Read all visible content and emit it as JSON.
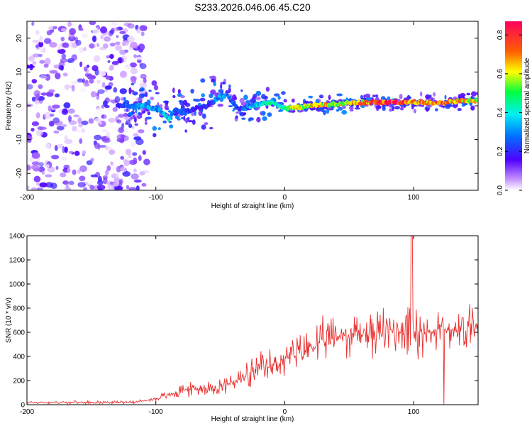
{
  "title": "S233.2026.046.06.45.C20",
  "chart_data": [
    {
      "type": "heatmap",
      "title": "",
      "xlabel": "Height of straight line (km)",
      "ylabel": "Frequency (Hz)",
      "xlim": [
        -200,
        150
      ],
      "ylim": [
        -25,
        25
      ],
      "xticks": [
        -200,
        -100,
        0,
        100
      ],
      "yticks": [
        -20,
        -10,
        0,
        10,
        20
      ],
      "colorbar": {
        "label": "Normalized spectral amplitude",
        "range": [
          0.0,
          0.87
        ],
        "ticks": [
          0.0,
          0.2,
          0.4,
          0.6,
          0.8
        ],
        "tick_labels": [
          "0.0",
          "0.2",
          "0.4",
          "0.6",
          "0.8"
        ]
      },
      "ridge": {
        "description": "dominant frequency band near 0 Hz",
        "x": [
          -130,
          -120,
          -110,
          -100,
          -95,
          -90,
          -85,
          -80,
          -70,
          -60,
          -50,
          -45,
          -40,
          -35,
          -30,
          -20,
          -10,
          0,
          10,
          20,
          40,
          60,
          80,
          100,
          120,
          140,
          150
        ],
        "y": [
          0,
          0,
          0,
          -1,
          -2,
          -4,
          -1,
          -2,
          -1,
          0,
          3,
          3,
          1,
          -1,
          -0.5,
          0.5,
          1,
          -1,
          -0.5,
          0,
          0.5,
          1,
          1,
          1,
          1,
          1.5,
          1.5
        ],
        "amplitude": [
          0.2,
          0.3,
          0.35,
          0.3,
          0.35,
          0.4,
          0.25,
          0.25,
          0.2,
          0.2,
          0.35,
          0.3,
          0.25,
          0.25,
          0.3,
          0.4,
          0.5,
          0.45,
          0.6,
          0.65,
          0.6,
          0.7,
          0.85,
          0.75,
          0.8,
          0.65,
          0.6
        ]
      },
      "noise_region": {
        "x_range": [
          -200,
          -115
        ],
        "amplitude": [
          0.0,
          0.2
        ]
      }
    },
    {
      "type": "line",
      "title": "",
      "xlabel": "Height of straight line (km)",
      "ylabel": "SNR (10 * v/v)",
      "xlim": [
        -200,
        150
      ],
      "ylim": [
        0,
        1400
      ],
      "xticks": [
        -200,
        -100,
        0,
        100
      ],
      "yticks": [
        0,
        200,
        400,
        600,
        800,
        1000,
        1200,
        1400
      ],
      "color": "#e8302f",
      "series": [
        {
          "name": "SNR",
          "x": [
            -200,
            -180,
            -160,
            -140,
            -120,
            -110,
            -100,
            -90,
            -80,
            -70,
            -60,
            -50,
            -40,
            -30,
            -20,
            -10,
            0,
            10,
            20,
            30,
            40,
            50,
            60,
            70,
            80,
            90,
            95,
            98,
            100,
            110,
            120,
            130,
            140,
            145,
            150
          ],
          "mean": [
            20,
            18,
            20,
            20,
            22,
            30,
            50,
            80,
            120,
            130,
            140,
            150,
            190,
            230,
            280,
            320,
            380,
            420,
            480,
            520,
            560,
            580,
            600,
            590,
            610,
            620,
            640,
            650,
            630,
            620,
            620,
            630,
            640,
            660,
            700
          ],
          "spread": [
            15,
            15,
            15,
            15,
            15,
            20,
            30,
            50,
            80,
            70,
            80,
            90,
            130,
            150,
            180,
            180,
            200,
            200,
            220,
            230,
            250,
            240,
            260,
            250,
            260,
            280,
            300,
            760,
            300,
            280,
            270,
            260,
            300,
            320,
            420
          ]
        }
      ]
    }
  ]
}
